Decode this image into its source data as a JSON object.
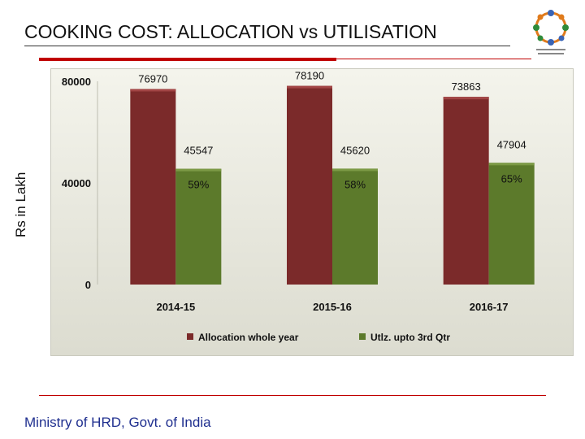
{
  "page": {
    "title": "COOKING COST: ALLOCATION vs UTILISATION",
    "footer": "Ministry of HRD, Govt. of India"
  },
  "logo": {
    "name": "mid-day-meal-logo",
    "colors": [
      "#3a64b5",
      "#e07b1c",
      "#2f8b3a"
    ]
  },
  "chart_data": {
    "type": "bar",
    "title": "",
    "xlabel": "",
    "ylabel": "Rs in Lakh",
    "categories": [
      "2014-15",
      "2015-16",
      "2016-17"
    ],
    "ylim": [
      0,
      80000
    ],
    "yticks": [
      0,
      40000,
      80000
    ],
    "series": [
      {
        "name": "Allocation whole year",
        "color": "#7b2a2a",
        "values": [
          76970,
          78190,
          73863
        ],
        "labels": [
          "76970",
          "78190",
          "73863"
        ]
      },
      {
        "name": "Utlz. upto 3rd Qtr",
        "color": "#5c7a2b",
        "values": [
          45547,
          45620,
          47904
        ],
        "labels": [
          "45547",
          "45620",
          "47904"
        ],
        "percent_labels": [
          "59%",
          "58%",
          "65%"
        ]
      }
    ],
    "grid": false,
    "legend": "bottom"
  }
}
